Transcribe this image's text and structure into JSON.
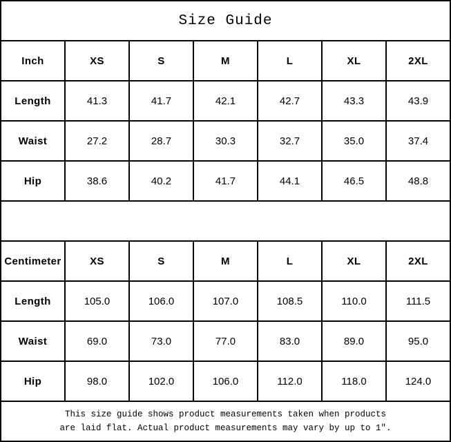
{
  "title": "Size Guide",
  "sizes": [
    "XS",
    "S",
    "M",
    "L",
    "XL",
    "2XL"
  ],
  "tables": [
    {
      "unit_label": "Inch",
      "rows": [
        {
          "label": "Length",
          "values": [
            "41.3",
            "41.7",
            "42.1",
            "42.7",
            "43.3",
            "43.9"
          ]
        },
        {
          "label": "Waist",
          "values": [
            "27.2",
            "28.7",
            "30.3",
            "32.7",
            "35.0",
            "37.4"
          ]
        },
        {
          "label": "Hip",
          "values": [
            "38.6",
            "40.2",
            "41.7",
            "44.1",
            "46.5",
            "48.8"
          ]
        }
      ]
    },
    {
      "unit_label": "Centimeter",
      "rows": [
        {
          "label": "Length",
          "values": [
            "105.0",
            "106.0",
            "107.0",
            "108.5",
            "110.0",
            "111.5"
          ]
        },
        {
          "label": "Waist",
          "values": [
            "69.0",
            "73.0",
            "77.0",
            "83.0",
            "89.0",
            "95.0"
          ]
        },
        {
          "label": "Hip",
          "values": [
            "98.0",
            "102.0",
            "106.0",
            "112.0",
            "118.0",
            "124.0"
          ]
        }
      ]
    }
  ],
  "footer": {
    "line1": "This size guide shows product measurements taken when products",
    "line2": "are laid flat. Actual product measurements may vary by up to 1″."
  },
  "colors": {
    "text": "#000000",
    "border": "#000000",
    "background": "#ffffff"
  }
}
